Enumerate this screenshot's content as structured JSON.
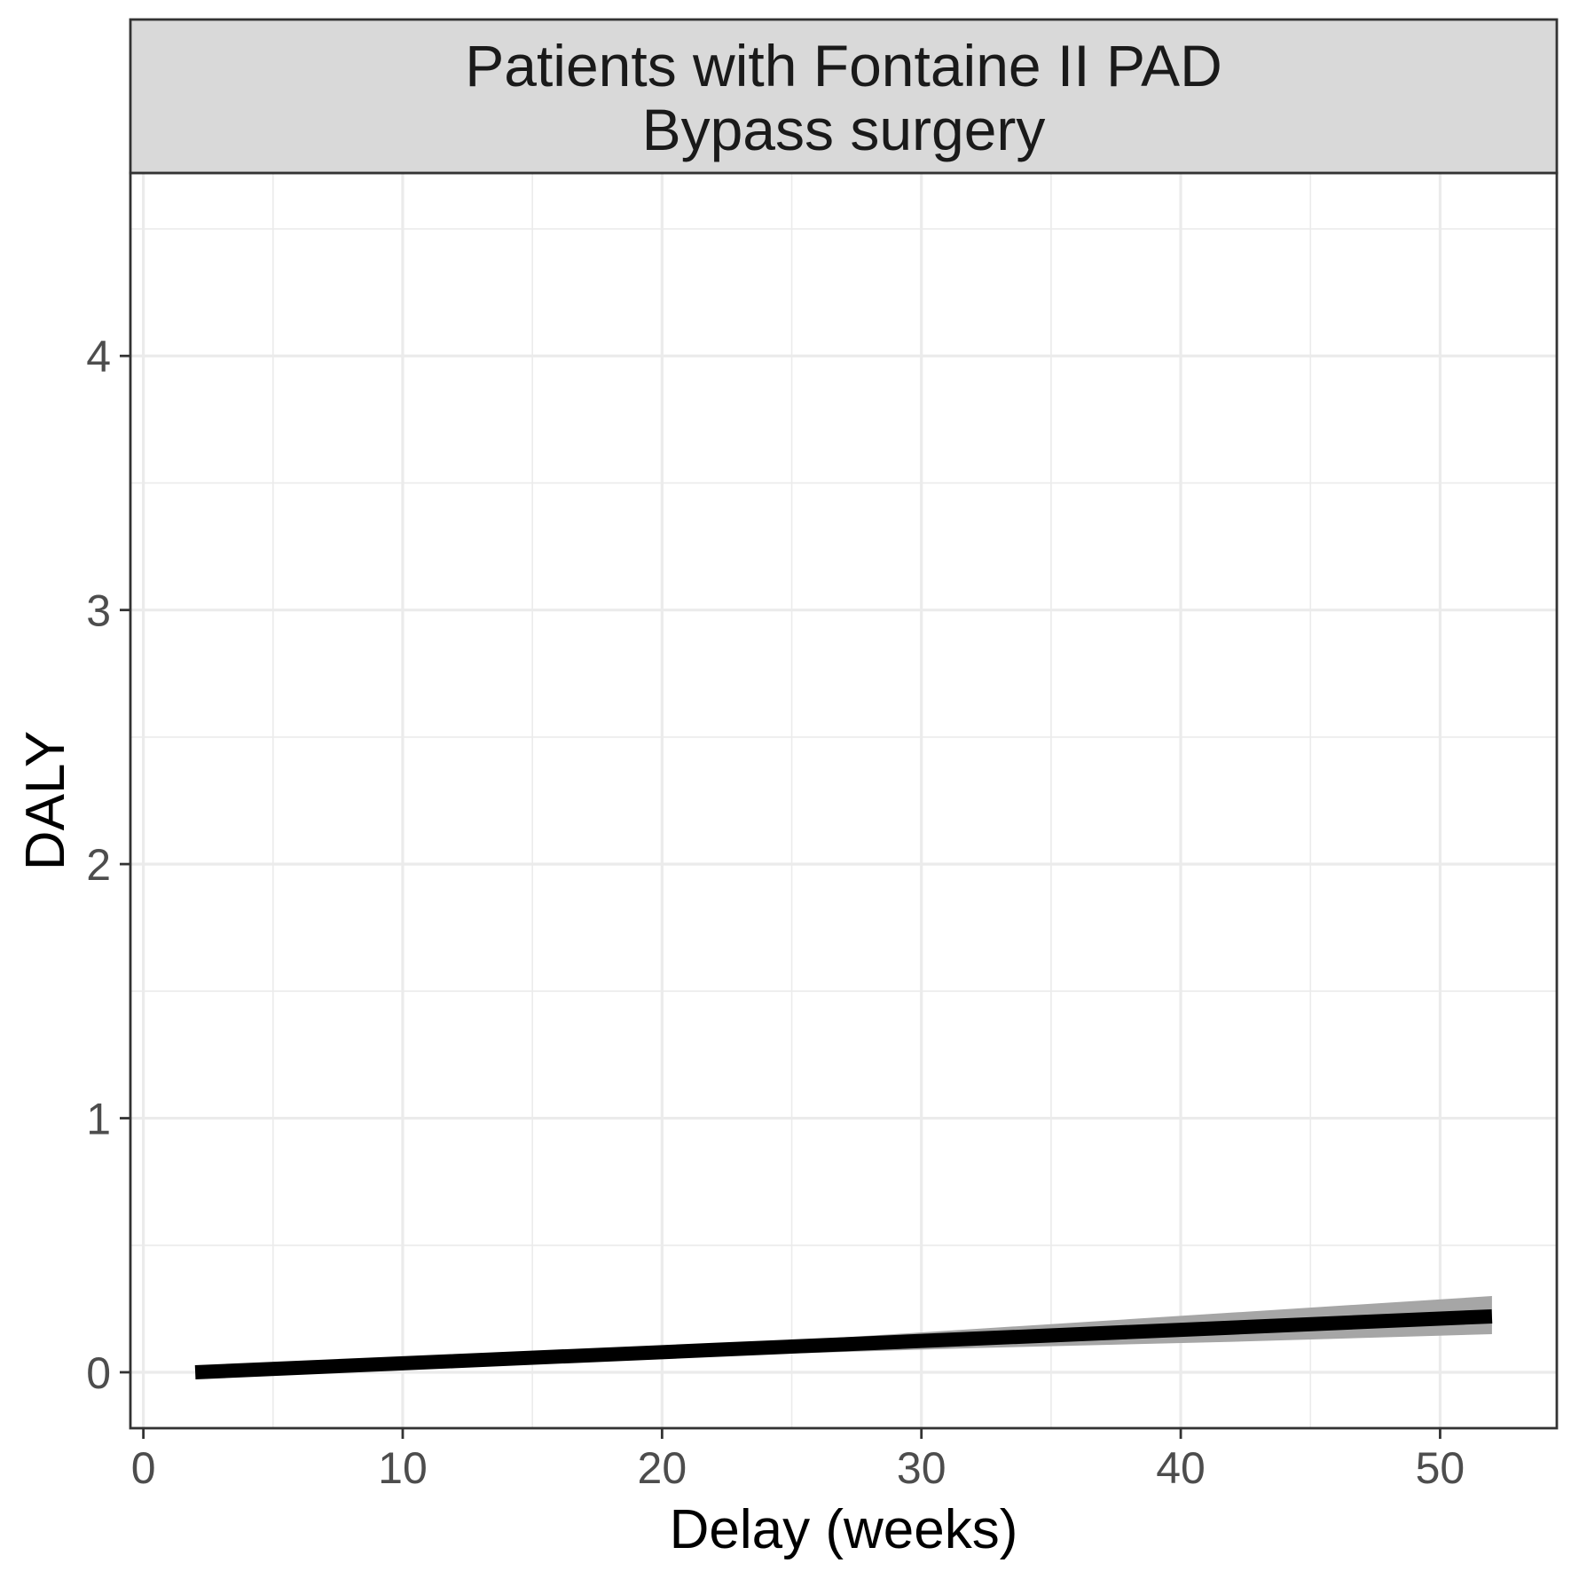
{
  "chart_data": {
    "type": "line",
    "facet_title": [
      "Patients with Fontaine II PAD",
      "Bypass surgery"
    ],
    "xlabel": "Delay (weeks)",
    "ylabel": "DALY",
    "xlim": [
      -0.5,
      54.5
    ],
    "ylim": [
      -0.22,
      4.72
    ],
    "x_ticks": [
      0,
      10,
      20,
      30,
      40,
      50
    ],
    "y_ticks": [
      0,
      1,
      2,
      3,
      4
    ],
    "x_minor_ticks": [
      5,
      15,
      25,
      35,
      45
    ],
    "y_minor_ticks": [
      0.5,
      1.5,
      2.5,
      3.5,
      4.5
    ],
    "grid": true,
    "series": [
      {
        "x": [
          2,
          12,
          22,
          32,
          42,
          52
        ],
        "y": [
          0.0,
          0.044,
          0.088,
          0.132,
          0.176,
          0.22
        ],
        "ymin": [
          0.0,
          0.035,
          0.065,
          0.095,
          0.12,
          0.15
        ],
        "ymax": [
          0.0,
          0.05,
          0.105,
          0.17,
          0.235,
          0.3
        ]
      }
    ],
    "colors": {
      "line": "#000000",
      "ribbon": "#a6a6a6",
      "strip_fill": "#d9d9d9",
      "grid": "#ebebeb",
      "panel_border": "#333333"
    }
  }
}
